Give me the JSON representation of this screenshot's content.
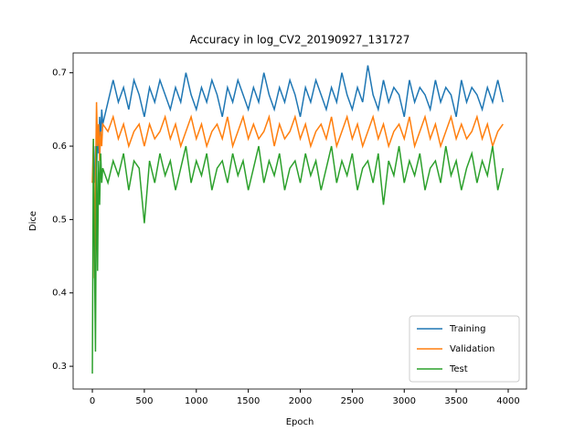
{
  "chart_data": {
    "type": "line",
    "title": "Accuracy in log_CV2_20190927_131727",
    "x_label": "Epoch",
    "y_label": "Dice",
    "x": [
      0,
      10,
      20,
      30,
      40,
      50,
      60,
      70,
      80,
      90,
      100,
      150,
      200,
      250,
      300,
      350,
      400,
      450,
      500,
      550,
      600,
      650,
      700,
      750,
      800,
      850,
      900,
      950,
      1000,
      1050,
      1100,
      1150,
      1200,
      1250,
      1300,
      1350,
      1400,
      1450,
      1500,
      1550,
      1600,
      1650,
      1700,
      1750,
      1800,
      1850,
      1900,
      1950,
      2000,
      2050,
      2100,
      2150,
      2200,
      2250,
      2300,
      2350,
      2400,
      2450,
      2500,
      2550,
      2600,
      2650,
      2700,
      2750,
      2800,
      2850,
      2900,
      2950,
      3000,
      3050,
      3100,
      3150,
      3200,
      3250,
      3300,
      3350,
      3400,
      3450,
      3500,
      3550,
      3600,
      3650,
      3700,
      3750,
      3800,
      3850,
      3900,
      3950
    ],
    "series": [
      {
        "name": "Training",
        "color": "#1f77b4",
        "values": [
          0.55,
          0.57,
          0.55,
          0.6,
          0.56,
          0.62,
          0.59,
          0.64,
          0.61,
          0.65,
          0.63,
          0.66,
          0.69,
          0.66,
          0.68,
          0.65,
          0.69,
          0.67,
          0.64,
          0.68,
          0.66,
          0.69,
          0.67,
          0.65,
          0.68,
          0.66,
          0.7,
          0.67,
          0.65,
          0.68,
          0.66,
          0.69,
          0.67,
          0.64,
          0.68,
          0.66,
          0.69,
          0.67,
          0.65,
          0.68,
          0.66,
          0.7,
          0.67,
          0.65,
          0.68,
          0.66,
          0.69,
          0.67,
          0.64,
          0.68,
          0.66,
          0.69,
          0.67,
          0.65,
          0.68,
          0.66,
          0.7,
          0.67,
          0.65,
          0.68,
          0.66,
          0.71,
          0.67,
          0.65,
          0.69,
          0.66,
          0.68,
          0.67,
          0.64,
          0.69,
          0.66,
          0.68,
          0.67,
          0.65,
          0.69,
          0.66,
          0.68,
          0.67,
          0.64,
          0.69,
          0.66,
          0.68,
          0.67,
          0.65,
          0.68,
          0.66,
          0.69,
          0.66
        ]
      },
      {
        "name": "Validation",
        "color": "#ff7f0e",
        "values": [
          0.55,
          0.61,
          0.42,
          0.55,
          0.66,
          0.6,
          0.63,
          0.58,
          0.62,
          0.6,
          0.63,
          0.62,
          0.64,
          0.61,
          0.63,
          0.6,
          0.62,
          0.63,
          0.6,
          0.63,
          0.61,
          0.62,
          0.64,
          0.61,
          0.63,
          0.6,
          0.62,
          0.64,
          0.61,
          0.63,
          0.6,
          0.62,
          0.63,
          0.61,
          0.64,
          0.6,
          0.62,
          0.64,
          0.61,
          0.63,
          0.61,
          0.62,
          0.64,
          0.6,
          0.63,
          0.61,
          0.62,
          0.64,
          0.61,
          0.63,
          0.6,
          0.62,
          0.63,
          0.61,
          0.64,
          0.6,
          0.62,
          0.64,
          0.61,
          0.63,
          0.6,
          0.62,
          0.64,
          0.61,
          0.63,
          0.6,
          0.62,
          0.63,
          0.61,
          0.64,
          0.6,
          0.62,
          0.64,
          0.61,
          0.63,
          0.6,
          0.62,
          0.64,
          0.61,
          0.63,
          0.61,
          0.62,
          0.64,
          0.61,
          0.63,
          0.6,
          0.62,
          0.63
        ]
      },
      {
        "name": "Test",
        "color": "#2ca02c",
        "values": [
          0.29,
          0.61,
          0.45,
          0.32,
          0.6,
          0.43,
          0.58,
          0.52,
          0.59,
          0.55,
          0.57,
          0.55,
          0.58,
          0.56,
          0.59,
          0.54,
          0.58,
          0.57,
          0.495,
          0.58,
          0.55,
          0.59,
          0.56,
          0.58,
          0.54,
          0.57,
          0.6,
          0.55,
          0.58,
          0.56,
          0.59,
          0.54,
          0.57,
          0.58,
          0.55,
          0.59,
          0.56,
          0.58,
          0.54,
          0.57,
          0.6,
          0.55,
          0.58,
          0.56,
          0.59,
          0.54,
          0.57,
          0.58,
          0.55,
          0.59,
          0.56,
          0.58,
          0.54,
          0.57,
          0.6,
          0.55,
          0.58,
          0.56,
          0.59,
          0.54,
          0.57,
          0.58,
          0.55,
          0.59,
          0.52,
          0.58,
          0.56,
          0.6,
          0.55,
          0.58,
          0.56,
          0.59,
          0.54,
          0.57,
          0.58,
          0.55,
          0.6,
          0.56,
          0.58,
          0.54,
          0.57,
          0.59,
          0.55,
          0.58,
          0.56,
          0.6,
          0.54,
          0.57
        ]
      }
    ],
    "xlim": [
      -185,
      4176
    ],
    "ylim": [
      0.269,
      0.727
    ],
    "xticks": [
      0,
      500,
      1000,
      1500,
      2000,
      2500,
      3000,
      3500,
      4000
    ],
    "yticks": [
      0.3,
      0.4,
      0.5,
      0.6,
      0.7
    ],
    "legend": "lower right"
  }
}
